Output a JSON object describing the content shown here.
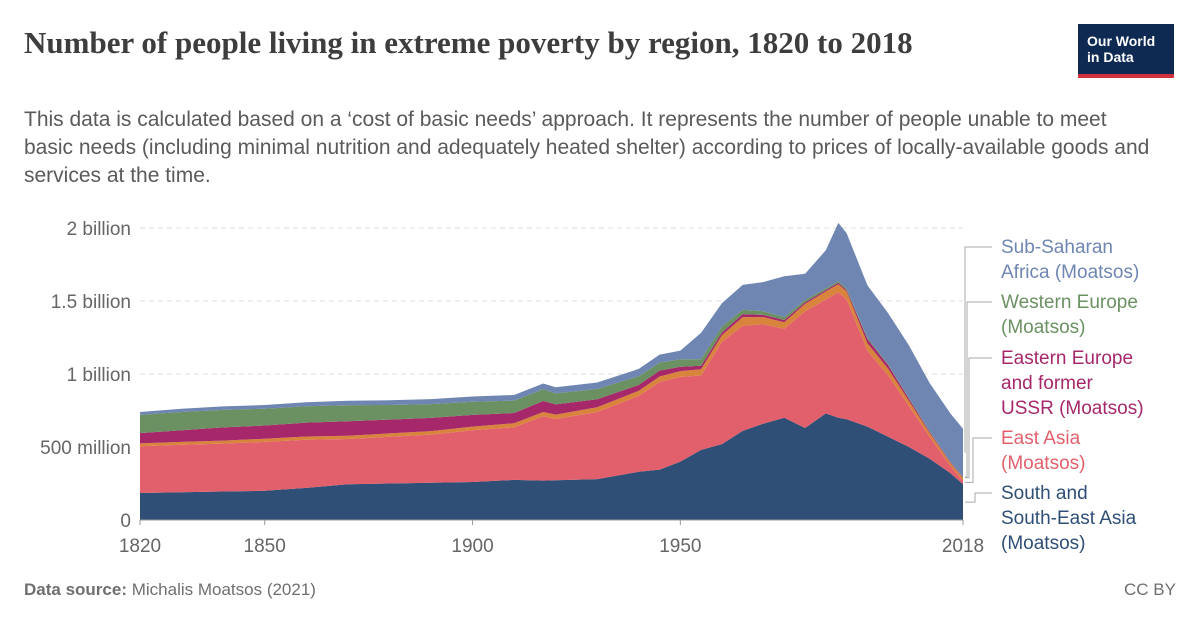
{
  "title": "Number of people living in extreme poverty by region, 1820 to 2018",
  "subtitle": "This data is calculated based on a ‘cost of basic needs’ approach. It represents the number of people unable to meet basic needs (including minimal nutrition and adequately heated shelter) according to prices of locally-available goods and services at the time.",
  "logo": {
    "line1": "Our World",
    "line2": "in Data"
  },
  "footer": {
    "source_label": "Data source:",
    "source_text": "Michalis Moatsos (2021)",
    "license": "CC BY"
  },
  "colors": {
    "south_se_asia": "#2f4f77",
    "east_asia": "#e2606c",
    "orange": "#d9843c",
    "eastern_europe": "#a6286a",
    "western_europe": "#6b9162",
    "sub_saharan_africa": "#6f86b2"
  },
  "chart_data": {
    "type": "area",
    "stacked": true,
    "xlim": [
      1820,
      2018
    ],
    "ylim": [
      0,
      2000000000
    ],
    "xticks": [
      1820,
      1850,
      1900,
      1950,
      2018
    ],
    "yticks": [
      {
        "value": 0,
        "label": "0"
      },
      {
        "value": 500000000,
        "label": "500 million"
      },
      {
        "value": 1000000000,
        "label": "1 billion"
      },
      {
        "value": 1500000000,
        "label": "1.5 billion"
      },
      {
        "value": 2000000000,
        "label": "2 billion"
      }
    ],
    "grid": "horizontal dashed",
    "legend_position": "right",
    "x": [
      1820,
      1830,
      1840,
      1850,
      1860,
      1870,
      1880,
      1890,
      1900,
      1910,
      1917,
      1920,
      1930,
      1940,
      1945,
      1950,
      1955,
      1960,
      1965,
      1970,
      1975,
      1980,
      1985,
      1988,
      1990,
      1995,
      2000,
      2005,
      2010,
      2015,
      2018
    ],
    "series": [
      {
        "name": "South and South-East Asia (Moatsos)",
        "color": "#2f4f77",
        "values": [
          185,
          190,
          195,
          200,
          220,
          245,
          250,
          255,
          260,
          275,
          270,
          272,
          280,
          330,
          345,
          400,
          480,
          520,
          610,
          660,
          700,
          630,
          730,
          700,
          690,
          640,
          570,
          500,
          420,
          320,
          245
        ]
      },
      {
        "name": "East Asia (Moatsos)",
        "color": "#e2606c",
        "values": [
          320,
          325,
          328,
          335,
          330,
          310,
          320,
          330,
          355,
          360,
          440,
          420,
          460,
          520,
          600,
          580,
          510,
          700,
          720,
          680,
          610,
          800,
          780,
          860,
          820,
          520,
          420,
          280,
          150,
          50,
          25
        ]
      },
      {
        "name": "",
        "color": "#d9843c",
        "values": [
          20,
          20,
          21,
          22,
          22,
          22,
          23,
          24,
          25,
          28,
          30,
          30,
          32,
          35,
          38,
          40,
          42,
          45,
          60,
          50,
          45,
          50,
          55,
          55,
          55,
          50,
          45,
          35,
          25,
          20,
          18
        ]
      },
      {
        "name": "Eastern Europe and former USSR (Moatsos)",
        "color": "#a6286a",
        "values": [
          70,
          80,
          90,
          90,
          95,
          100,
          95,
          90,
          80,
          70,
          75,
          70,
          55,
          40,
          40,
          30,
          25,
          20,
          20,
          15,
          15,
          12,
          10,
          10,
          10,
          30,
          25,
          15,
          8,
          5,
          4
        ]
      },
      {
        "name": "Western Europe (Moatsos)",
        "color": "#6b9162",
        "values": [
          125,
          125,
          120,
          115,
          112,
          110,
          100,
          95,
          90,
          85,
          80,
          75,
          70,
          60,
          55,
          50,
          45,
          40,
          30,
          25,
          20,
          15,
          12,
          10,
          10,
          8,
          6,
          5,
          5,
          4,
          3
        ]
      },
      {
        "name": "Sub-Saharan Africa (Moatsos)",
        "color": "#6f86b2",
        "values": [
          20,
          22,
          24,
          26,
          28,
          30,
          32,
          34,
          36,
          38,
          40,
          42,
          45,
          50,
          55,
          60,
          180,
          160,
          170,
          200,
          280,
          180,
          260,
          400,
          380,
          360,
          350,
          360,
          330,
          330,
          330
        ]
      }
    ],
    "value_scale": 1000000
  }
}
